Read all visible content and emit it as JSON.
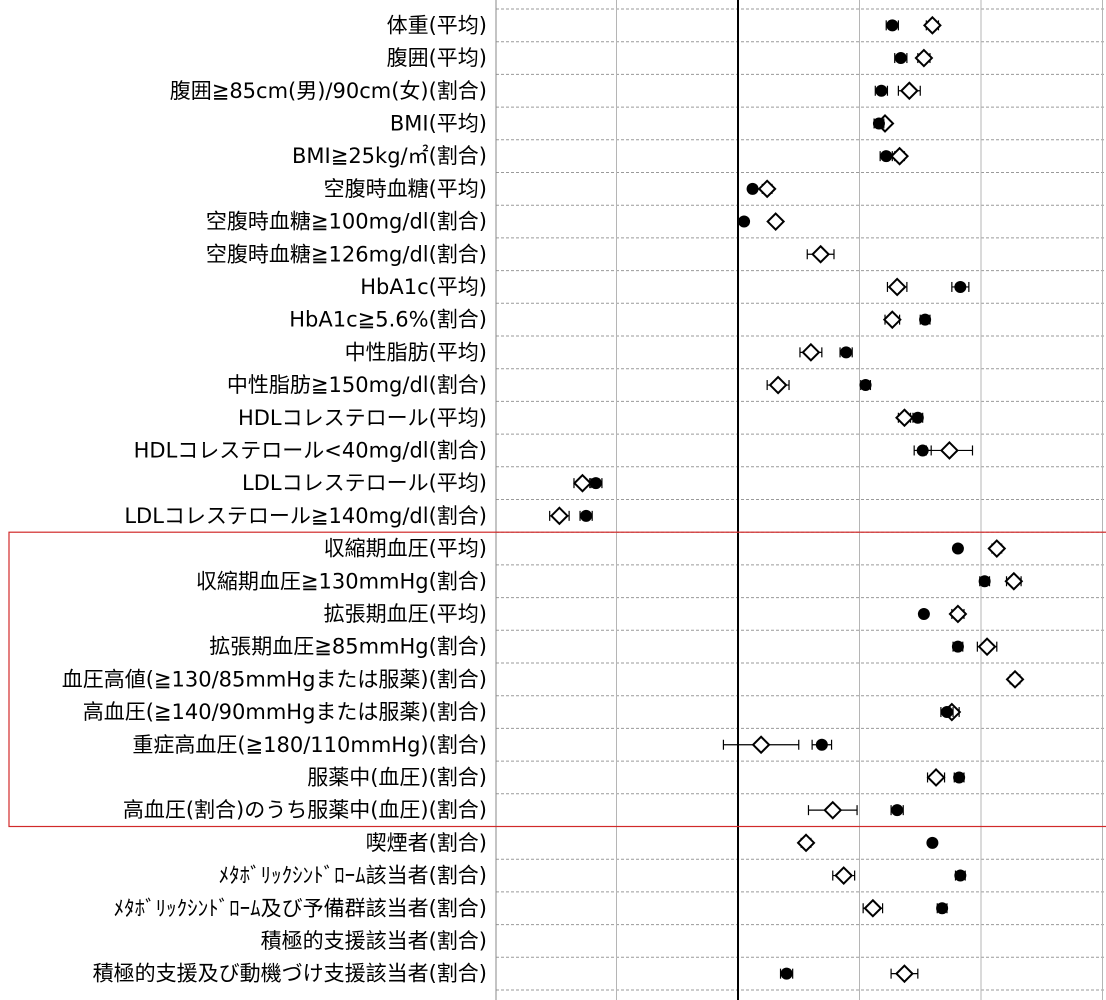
{
  "chart_data": {
    "type": "scatter",
    "title": "",
    "xlabel": "",
    "ylabel": "",
    "grid": true,
    "reference_x": 0,
    "xlim": [
      -2.0,
      3.0
    ],
    "series": [
      {
        "name": "",
        "marker": "filled-circle",
        "color": "#000000"
      },
      {
        "name": "",
        "marker": "open-diamond",
        "color": "#000000"
      }
    ],
    "categories": [
      "体重(平均)",
      "腹囲(平均)",
      "腹囲≧85cm(男)/90cm(女)(割合)",
      "BMI(平均)",
      "BMI≧25kg/㎡(割合)",
      "空腹時血糖(平均)",
      "空腹時血糖≧100mg/dl(割合)",
      "空腹時血糖≧126mg/dl(割合)",
      "HbA1c(平均)",
      "HbA1c≧5.6%(割合)",
      "中性脂肪(平均)",
      "中性脂肪≧150mg/dl(割合)",
      "HDLコレステロール(平均)",
      "HDLコレステロール<40mg/dl(割合)",
      "LDLコレステロール(平均)",
      "LDLコレステロール≧140mg/dl(割合)",
      "収縮期血圧(平均)",
      "収縮期血圧≧130mmHg(割合)",
      "拡張期血圧(平均)",
      "拡張期血圧≧85mmHg(割合)",
      "血圧高値(≧130/85mmHgまたは服薬)(割合)",
      "高血圧(≧140/90mmHgまたは服薬)(割合)",
      "重症高血圧(≧180/110mmHg)(割合)",
      "服薬中(血圧)(割合)",
      "高血圧(割合)のうち服薬中(血圧)(割合)",
      "喫煙者(割合)",
      "ﾒﾀﾎﾞﾘｯｸｼﾝﾄﾞﾛｰﾑ該当者(割合)",
      "ﾒﾀﾎﾞﾘｯｸｼﾝﾄﾞﾛｰﾑ及び予備群該当者(割合)",
      "積極的支援該当者(割合)",
      "積極的支援及び動機づけ支援該当者(割合)"
    ],
    "circle": [
      {
        "v": 1.27,
        "e": 0.05
      },
      {
        "v": 1.34,
        "e": 0.05
      },
      {
        "v": 1.18,
        "e": 0.05
      },
      {
        "v": 1.16,
        "e": 0.04
      },
      {
        "v": 1.22,
        "e": 0.05
      },
      {
        "v": 0.12,
        "e": 0.0
      },
      {
        "v": 0.05,
        "e": 0.0
      },
      null,
      {
        "v": 1.83,
        "e": 0.07
      },
      {
        "v": 1.54,
        "e": 0.04
      },
      {
        "v": 0.89,
        "e": 0.05
      },
      {
        "v": 1.05,
        "e": 0.04
      },
      {
        "v": 1.48,
        "e": 0.04
      },
      {
        "v": 1.52,
        "e": 0.07
      },
      {
        "v": -1.17,
        "e": 0.05
      },
      {
        "v": -1.25,
        "e": 0.05
      },
      {
        "v": 1.81,
        "e": 0.0
      },
      {
        "v": 2.03,
        "e": 0.04
      },
      {
        "v": 1.53,
        "e": 0.0
      },
      {
        "v": 1.81,
        "e": 0.04
      },
      null,
      {
        "v": 1.72,
        "e": 0.05
      },
      {
        "v": 0.69,
        "e": 0.08
      },
      {
        "v": 1.82,
        "e": 0.04
      },
      {
        "v": 1.31,
        "e": 0.05
      },
      {
        "v": 1.6,
        "e": 0.0
      },
      {
        "v": 1.83,
        "e": 0.04
      },
      {
        "v": 1.68,
        "e": 0.04
      },
      null,
      {
        "v": 0.4,
        "e": 0.05
      }
    ],
    "diamond": [
      {
        "v": 1.6,
        "e": 0.05
      },
      {
        "v": 1.53,
        "e": 0.05
      },
      {
        "v": 1.41,
        "e": 0.09
      },
      {
        "v": 1.21,
        "e": 0.03
      },
      {
        "v": 1.33,
        "e": 0.04
      },
      {
        "v": 0.24,
        "e": 0.04
      },
      {
        "v": 0.31,
        "e": 0.0
      },
      {
        "v": 0.68,
        "e": 0.11
      },
      {
        "v": 1.31,
        "e": 0.08
      },
      {
        "v": 1.27,
        "e": 0.06
      },
      {
        "v": 0.6,
        "e": 0.09
      },
      {
        "v": 0.33,
        "e": 0.09
      },
      {
        "v": 1.37,
        "e": 0.05
      },
      {
        "v": 1.74,
        "e": 0.19
      },
      {
        "v": -1.28,
        "e": 0.07
      },
      {
        "v": -1.47,
        "e": 0.08
      },
      {
        "v": 2.13,
        "e": 0.04
      },
      {
        "v": 2.27,
        "e": 0.06
      },
      {
        "v": 1.81,
        "e": 0.05
      },
      {
        "v": 2.05,
        "e": 0.08
      },
      {
        "v": 2.28,
        "e": 0.04
      },
      {
        "v": 1.76,
        "e": 0.06
      },
      {
        "v": 0.19,
        "e": 0.31
      },
      {
        "v": 1.63,
        "e": 0.07
      },
      {
        "v": 0.78,
        "e": 0.2
      },
      {
        "v": 0.56,
        "e": 0.04
      },
      {
        "v": 0.87,
        "e": 0.09
      },
      {
        "v": 1.11,
        "e": 0.08
      },
      null,
      {
        "v": 1.37,
        "e": 0.11
      }
    ],
    "highlight_rows": [
      16,
      24
    ],
    "highlight_color": "#d12a2a"
  }
}
